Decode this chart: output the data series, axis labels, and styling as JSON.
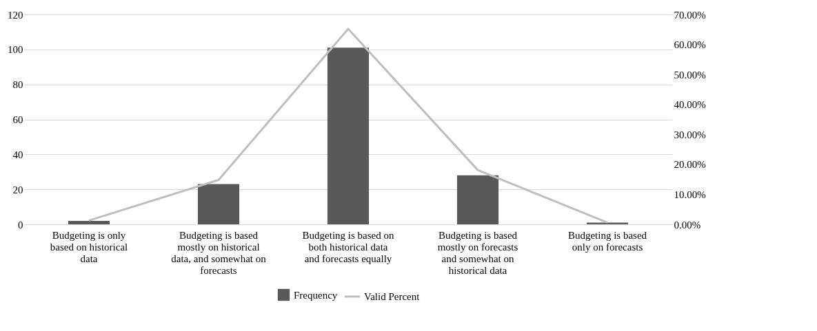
{
  "chart_data": {
    "type": "bar",
    "categories": [
      "Budgeting is only based on historical data",
      "Budgeting is based mostly on historical data, and somewhat on forecasts",
      "Budgeting is based on both historical data and forecasts equally",
      "Budgeting is based mostly on forecasts and somewhat on historical data",
      "Budgeting is based only on forecasts"
    ],
    "series": [
      {
        "name": "Frequency",
        "color": "#595959",
        "values": [
          2,
          23,
          101,
          28,
          1
        ]
      },
      {
        "name": "Valid Percent",
        "type": "line",
        "axis": "y2",
        "color": "#bfbfbf",
        "values": [
          1.3,
          14.8,
          65.2,
          18.1,
          0.6
        ]
      }
    ],
    "ylim": [
      0,
      120
    ],
    "yticks": [
      0,
      20,
      40,
      60,
      80,
      100,
      120
    ],
    "y2lim": [
      0,
      70
    ],
    "y2ticks": [
      {
        "value": 0,
        "label": "0.00%"
      },
      {
        "value": 10,
        "label": "10.00%"
      },
      {
        "value": 20,
        "label": "20.00%"
      },
      {
        "value": 30,
        "label": "30.00%"
      },
      {
        "value": 40,
        "label": "40.00%"
      },
      {
        "value": 50,
        "label": "50.00%"
      },
      {
        "value": 60,
        "label": "60.00%"
      },
      {
        "value": 70,
        "label": "70.00%"
      }
    ],
    "grid": "y",
    "legend": "bottom"
  }
}
